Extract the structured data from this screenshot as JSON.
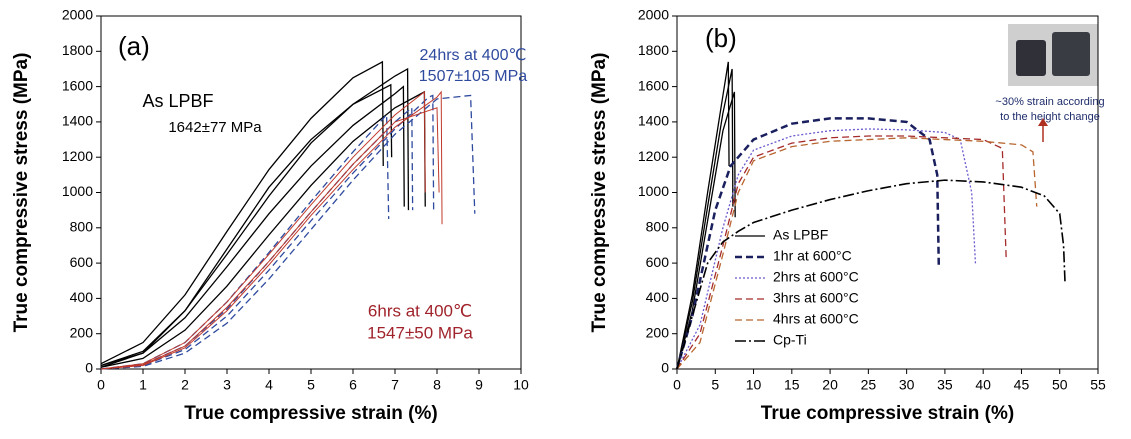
{
  "chart_data": [
    {
      "type": "line",
      "panel_label": "(a)",
      "x_label": "True compressive strain (%)",
      "y_label": "True compressive stress (MPa)",
      "xlim": [
        0,
        10
      ],
      "xticks": [
        0,
        1,
        2,
        3,
        4,
        5,
        6,
        7,
        8,
        9,
        10
      ],
      "ylim": [
        0,
        2000
      ],
      "yticks": [
        0,
        200,
        400,
        600,
        800,
        1000,
        1200,
        1400,
        1600,
        1800,
        2000
      ],
      "grid": false,
      "annotations": [
        {
          "text": "As LPBF",
          "color": "#000000"
        },
        {
          "text": "1642±77 MPa",
          "color": "#000000"
        },
        {
          "text": "24hrs at 400℃",
          "color": "#2e4a9e"
        },
        {
          "text": "1507±105 MPa",
          "color": "#2e4a9e"
        },
        {
          "text": "6hrs at 400℃",
          "color": "#a0232b"
        },
        {
          "text": "1547±50 MPa",
          "color": "#a0232b"
        }
      ],
      "series": [
        {
          "color": "#000000",
          "style": "solid",
          "linewidth": 1.3,
          "x": [
            0,
            1,
            2,
            3,
            4,
            5,
            6,
            6.7,
            6.72
          ],
          "values": [
            30,
            150,
            420,
            780,
            1130,
            1420,
            1650,
            1740,
            1150
          ]
        },
        {
          "color": "#000000",
          "style": "solid",
          "linewidth": 1.3,
          "x": [
            0,
            1,
            2,
            3,
            4,
            5,
            6,
            7,
            7.3,
            7.32
          ],
          "values": [
            20,
            100,
            330,
            650,
            980,
            1280,
            1500,
            1660,
            1700,
            900
          ]
        },
        {
          "color": "#000000",
          "style": "solid",
          "linewidth": 1.3,
          "x": [
            0,
            1,
            2,
            3,
            4,
            5,
            6,
            6.9,
            6.92
          ],
          "values": [
            10,
            90,
            330,
            680,
            1030,
            1300,
            1500,
            1610,
            1200
          ]
        },
        {
          "color": "#000000",
          "style": "solid",
          "linewidth": 1.3,
          "x": [
            0,
            1,
            2,
            3,
            4,
            5,
            6,
            7,
            7.2,
            7.22
          ],
          "values": [
            20,
            90,
            290,
            580,
            880,
            1150,
            1380,
            1560,
            1600,
            920
          ]
        },
        {
          "color": "#000000",
          "style": "solid",
          "linewidth": 1.3,
          "x": [
            0,
            1,
            2,
            3,
            4,
            5,
            6,
            7,
            7.7,
            7.72
          ],
          "values": [
            10,
            60,
            220,
            470,
            760,
            1040,
            1290,
            1480,
            1570,
            920
          ]
        },
        {
          "color": "#2e4a9e",
          "style": "dashed",
          "linewidth": 1.3,
          "x": [
            0,
            1,
            2,
            3,
            4,
            5,
            6,
            6.8,
            6.85
          ],
          "values": [
            0,
            30,
            150,
            380,
            660,
            950,
            1230,
            1440,
            850
          ]
        },
        {
          "color": "#2e4a9e",
          "style": "dashed",
          "linewidth": 1.3,
          "x": [
            0,
            1,
            2,
            3,
            4,
            5,
            6,
            7,
            7.4,
            7.42
          ],
          "values": [
            0,
            25,
            130,
            340,
            610,
            890,
            1160,
            1400,
            1480,
            900
          ]
        },
        {
          "color": "#2e4a9e",
          "style": "dashed",
          "linewidth": 1.3,
          "x": [
            0,
            1,
            2,
            3,
            4,
            5,
            6,
            7,
            7.8,
            7.9,
            7.92
          ],
          "values": [
            0,
            20,
            110,
            300,
            560,
            840,
            1110,
            1360,
            1540,
            1550,
            900
          ]
        },
        {
          "color": "#2e4a9e",
          "style": "dashed",
          "linewidth": 1.3,
          "x": [
            0,
            1,
            2,
            3,
            4,
            5,
            6,
            7,
            8,
            8.8,
            8.9
          ],
          "values": [
            0,
            15,
            90,
            260,
            510,
            790,
            1070,
            1330,
            1530,
            1550,
            880
          ]
        },
        {
          "color": "#c0392b",
          "style": "solid",
          "linewidth": 1,
          "x": [
            0,
            1,
            2,
            3,
            4,
            5,
            6,
            7,
            7.7,
            7.72
          ],
          "values": [
            0,
            30,
            150,
            380,
            650,
            930,
            1200,
            1440,
            1570,
            1000
          ]
        },
        {
          "color": "#c0392b",
          "style": "solid",
          "linewidth": 1,
          "x": [
            0,
            1,
            2,
            3,
            4,
            5,
            6,
            7,
            8,
            8.1,
            8.12
          ],
          "values": [
            0,
            20,
            120,
            330,
            590,
            870,
            1130,
            1370,
            1540,
            1570,
            820
          ]
        },
        {
          "color": "#c0392b",
          "style": "solid",
          "linewidth": 1,
          "x": [
            0,
            1,
            2,
            3,
            4,
            5,
            6,
            7,
            8,
            8.05
          ],
          "values": [
            0,
            25,
            130,
            350,
            610,
            890,
            1160,
            1400,
            1480,
            1000
          ]
        }
      ]
    },
    {
      "type": "line",
      "panel_label": "(b)",
      "x_label": "True compressive strain (%)",
      "y_label": "True compressive stress (MPa)",
      "xlim": [
        0,
        55
      ],
      "xticks": [
        0,
        5,
        10,
        15,
        20,
        25,
        30,
        35,
        40,
        45,
        50,
        55
      ],
      "ylim": [
        0,
        2000
      ],
      "yticks": [
        0,
        200,
        400,
        600,
        800,
        1000,
        1200,
        1400,
        1600,
        1800,
        2000
      ],
      "grid": false,
      "annotations": [
        {
          "text": "~30% strain according",
          "color": "#1f2d6b"
        },
        {
          "text": "to the height change",
          "color": "#1f2d6b"
        }
      ],
      "series": [
        {
          "name": "As LPBF",
          "color": "#000000",
          "style": "solid",
          "linewidth": 1.3,
          "x": [
            0,
            2,
            4,
            6,
            6.7,
            6.8
          ],
          "values": [
            0,
            420,
            1000,
            1550,
            1740,
            1150
          ]
        },
        {
          "color": "#000000",
          "style": "solid",
          "linewidth": 1.3,
          "x": [
            0,
            2,
            4,
            6,
            7.2,
            7.3
          ],
          "values": [
            0,
            380,
            920,
            1450,
            1700,
            920
          ]
        },
        {
          "color": "#000000",
          "style": "solid",
          "linewidth": 1.3,
          "x": [
            0,
            2,
            4,
            6,
            7.5,
            7.6
          ],
          "values": [
            0,
            330,
            840,
            1350,
            1570,
            860
          ]
        },
        {
          "name": "1hr at 600°C",
          "color": "#1a1f5e",
          "style": "dashed",
          "linewidth": 2.5,
          "x": [
            0,
            2,
            5,
            7,
            10,
            15,
            20,
            25,
            30,
            33,
            34,
            34.2
          ],
          "values": [
            0,
            300,
            900,
            1150,
            1300,
            1390,
            1420,
            1420,
            1400,
            1300,
            1100,
            580
          ]
        },
        {
          "name": "2hrs at 600°C",
          "color": "#6a5acd",
          "style": "dotted",
          "linewidth": 1.3,
          "x": [
            0,
            3,
            6,
            8,
            10,
            15,
            20,
            25,
            30,
            35,
            37,
            38.5,
            39
          ],
          "values": [
            0,
            250,
            800,
            1100,
            1240,
            1320,
            1350,
            1360,
            1355,
            1340,
            1300,
            1000,
            590
          ]
        },
        {
          "name": "3hrs at 600°C",
          "color": "#a52a2a",
          "style": "dashed",
          "linewidth": 1.3,
          "x": [
            0,
            3,
            6,
            8,
            10,
            15,
            20,
            25,
            30,
            35,
            40,
            42.5,
            43
          ],
          "values": [
            0,
            200,
            700,
            1050,
            1200,
            1280,
            1310,
            1320,
            1320,
            1310,
            1300,
            1250,
            630
          ]
        },
        {
          "name": "4hrs at 600°C",
          "color": "#b8652f",
          "style": "dashed",
          "linewidth": 1.3,
          "x": [
            0,
            3,
            6,
            8,
            10,
            15,
            20,
            25,
            30,
            35,
            40,
            45,
            46.5,
            47
          ],
          "values": [
            0,
            150,
            650,
            1000,
            1180,
            1260,
            1290,
            1300,
            1310,
            1300,
            1290,
            1270,
            1230,
            920
          ]
        },
        {
          "name": "Cp-Ti",
          "color": "#000000",
          "style": "dashdot",
          "linewidth": 1.6,
          "x": [
            0,
            2,
            4,
            6,
            8,
            10,
            15,
            20,
            25,
            30,
            35,
            40,
            45,
            48,
            50,
            50.5,
            50.7
          ],
          "values": [
            0,
            300,
            600,
            720,
            780,
            830,
            900,
            960,
            1010,
            1050,
            1070,
            1060,
            1030,
            980,
            880,
            700,
            480
          ]
        }
      ]
    }
  ]
}
